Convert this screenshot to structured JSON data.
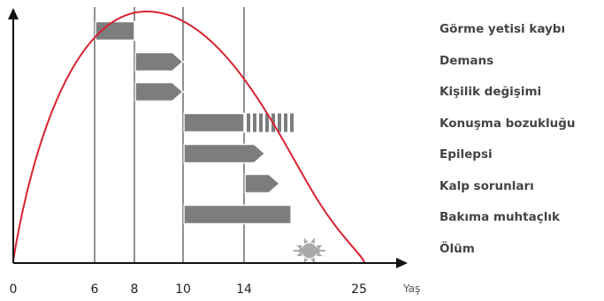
{
  "chart_data": {
    "type": "timeline",
    "x_unit": "Yaş",
    "x_ticks": [
      0,
      6,
      8,
      10,
      14,
      25
    ],
    "x_range": [
      0,
      25
    ],
    "curve": {
      "description_shown": "red rise-and-fall curve",
      "peak_age": 8.5,
      "end_age": 25.5
    },
    "conditions": [
      {
        "label": "Görme yetisi kaybı",
        "start": 6,
        "end": 8,
        "shape": "box"
      },
      {
        "label": "Demans",
        "start": 8,
        "end": 10,
        "shape": "arrow"
      },
      {
        "label": "Kişilik değişimi",
        "start": 8,
        "end": 10,
        "shape": "arrow"
      },
      {
        "label": "Konuşma bozukluğu",
        "start": 10,
        "end": 14,
        "shape": "box",
        "dashed_end": 18.8
      },
      {
        "label": "Epilepsi",
        "start": 10,
        "end": 16,
        "shape": "arrow"
      },
      {
        "label": "Kalp sorunları",
        "start": 14,
        "end": 17.4,
        "shape": "arrow"
      },
      {
        "label": "Bakıma muhtaçlık",
        "start": 10,
        "end": 18.5,
        "shape": "box"
      },
      {
        "label": "Ölüm",
        "start": 19,
        "end": 21.5,
        "shape": "sun"
      }
    ]
  },
  "colors": {
    "axis": "#111111",
    "bar": "#7d7d7d",
    "bar_border": "#ffffff",
    "curve": "#d6232f",
    "guide": "#222222",
    "sun": "#a9a9a9"
  }
}
